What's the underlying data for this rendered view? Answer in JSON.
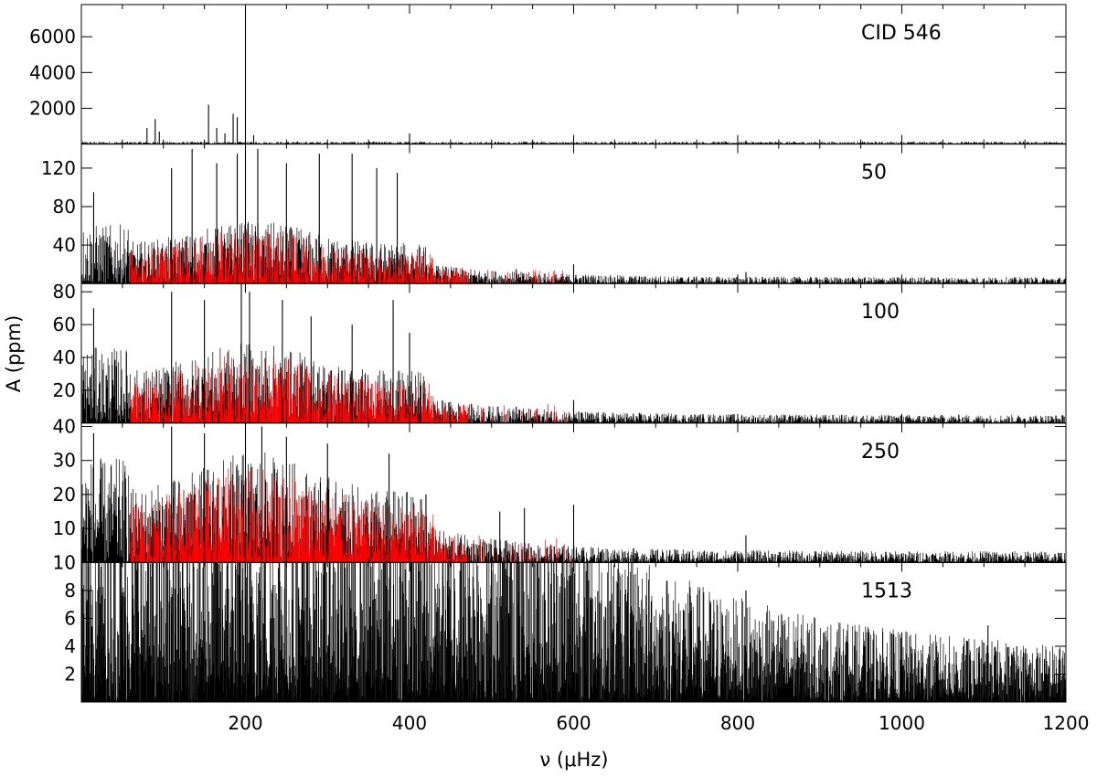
{
  "chart_data": {
    "type": "line",
    "description_axis": {
      "xlabel": "ν (μHz)",
      "ylabel": "A (ppm)",
      "xlim": [
        0,
        1200
      ],
      "x_ticks": [
        "200",
        "400",
        "600",
        "800",
        "1000",
        "1200"
      ],
      "grid": false
    },
    "colors": {
      "observed": "#000000",
      "model": "#ff0000",
      "frame": "#000000"
    },
    "panels": [
      {
        "label": "CID 546",
        "ylim": [
          0,
          7800
        ],
        "y_ticks": [
          2000,
          4000,
          6000
        ],
        "y_tick_labels": [
          "2000",
          "4000",
          "6000"
        ],
        "noise_level": 90,
        "has_red_series": false,
        "peaks": [
          [
            80,
            900
          ],
          [
            90,
            1400
          ],
          [
            95,
            700
          ],
          [
            155,
            2200
          ],
          [
            165,
            900
          ],
          [
            175,
            600
          ],
          [
            185,
            1700
          ],
          [
            190,
            1500
          ],
          [
            200,
            7800
          ],
          [
            210,
            500
          ],
          [
            400,
            600
          ],
          [
            810,
            200
          ]
        ]
      },
      {
        "label": "50",
        "ylim": [
          0,
          145
        ],
        "y_ticks": [
          40,
          80,
          120
        ],
        "y_tick_labels": [
          "40",
          "80",
          "120"
        ],
        "noise_level": 12,
        "has_red_series": true,
        "peaks": [
          [
            15,
            95
          ],
          [
            110,
            120
          ],
          [
            135,
            140
          ],
          [
            165,
            125
          ],
          [
            190,
            135
          ],
          [
            200,
            138
          ],
          [
            215,
            140
          ],
          [
            250,
            125
          ],
          [
            290,
            135
          ],
          [
            330,
            135
          ],
          [
            360,
            120
          ],
          [
            385,
            115
          ],
          [
            530,
            15
          ],
          [
            600,
            20
          ],
          [
            810,
            12
          ]
        ]
      },
      {
        "label": "100",
        "ylim": [
          0,
          85
        ],
        "y_ticks": [
          20,
          40,
          60,
          80
        ],
        "y_tick_labels": [
          "20",
          "40",
          "60",
          "80"
        ],
        "noise_level": 9,
        "has_red_series": true,
        "peaks": [
          [
            15,
            70
          ],
          [
            110,
            80
          ],
          [
            150,
            75
          ],
          [
            195,
            85
          ],
          [
            205,
            80
          ],
          [
            245,
            75
          ],
          [
            280,
            65
          ],
          [
            330,
            60
          ],
          [
            380,
            75
          ],
          [
            400,
            55
          ],
          [
            530,
            10
          ],
          [
            600,
            14
          ]
        ]
      },
      {
        "label": "250",
        "ylim": [
          0,
          41
        ],
        "y_ticks": [
          10,
          20,
          30,
          40
        ],
        "y_tick_labels": [
          "10",
          "20",
          "30",
          "40"
        ],
        "noise_level": 6,
        "has_red_series": true,
        "peaks": [
          [
            15,
            38
          ],
          [
            110,
            40
          ],
          [
            150,
            38
          ],
          [
            200,
            41
          ],
          [
            220,
            40
          ],
          [
            250,
            37
          ],
          [
            300,
            35
          ],
          [
            375,
            32
          ],
          [
            420,
            20
          ],
          [
            510,
            15
          ],
          [
            540,
            16
          ],
          [
            600,
            17
          ],
          [
            810,
            8
          ]
        ]
      },
      {
        "label": "1513",
        "ylim": [
          0,
          10
        ],
        "y_ticks": [
          2,
          4,
          6,
          8,
          10
        ],
        "y_tick_labels": [
          "2",
          "4",
          "6",
          "8",
          "10"
        ],
        "noise_level": 9,
        "has_red_series": false,
        "peaks": [
          [
            810,
            8
          ],
          [
            960,
            5
          ],
          [
            1000,
            5
          ],
          [
            1105,
            5.5
          ],
          [
            1140,
            4
          ]
        ]
      }
    ]
  }
}
